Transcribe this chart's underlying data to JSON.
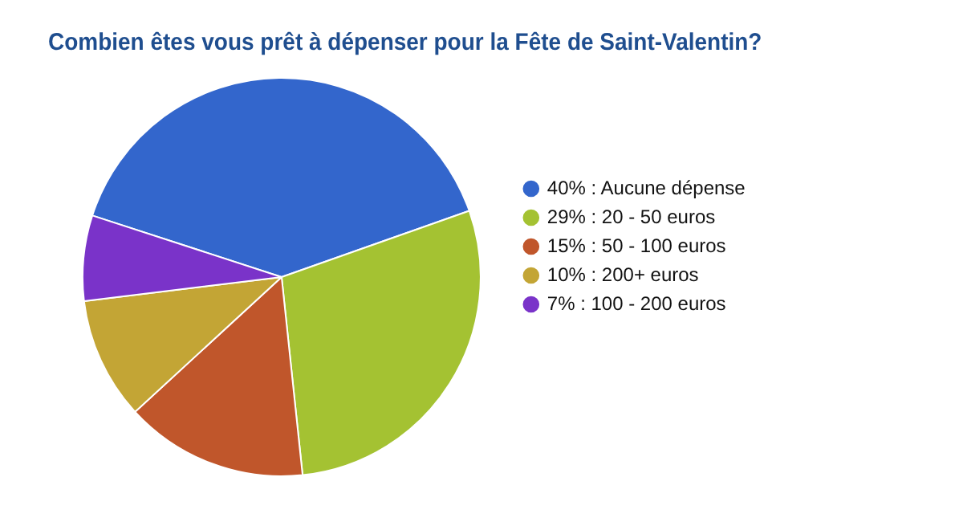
{
  "chart_data": {
    "type": "pie",
    "title": "Combien êtes vous prêt à dépenser pour la Fête de Saint-Valentin?",
    "categories": [
      "40% : Aucune dépense",
      "29% : 20 - 50 euros",
      "15% : 50 - 100 euros",
      "10% : 200+ euros",
      "7% : 100 - 200 euros"
    ],
    "values": [
      40,
      29,
      15,
      10,
      7
    ],
    "colors": [
      "#3366cc",
      "#a4c232",
      "#c0562b",
      "#c3a535",
      "#7a33c9"
    ],
    "legend": "right"
  }
}
